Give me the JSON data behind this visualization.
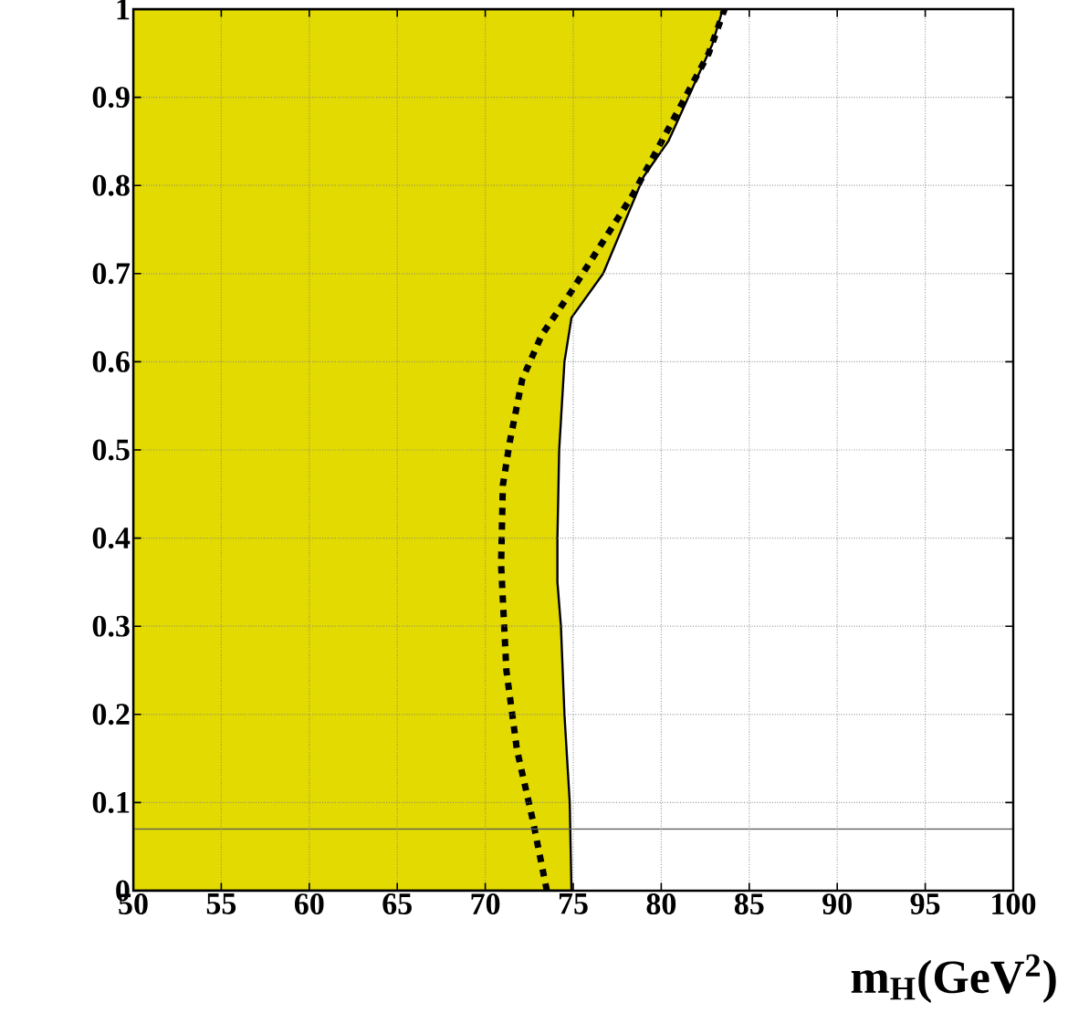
{
  "chart_data": {
    "type": "line",
    "xlabel": "m$_{H}$(GeV$^{2}$)",
    "xlim": [
      50,
      100
    ],
    "ylim": [
      0,
      1
    ],
    "xticks": [
      50,
      55,
      60,
      65,
      70,
      75,
      80,
      85,
      90,
      95,
      100
    ],
    "yticks": [
      0,
      0.1,
      0.2,
      0.3,
      0.4,
      0.5,
      0.6,
      0.7,
      0.8,
      0.9,
      1
    ],
    "grid": true,
    "series": [
      {
        "type": "area",
        "color": "#e2da00",
        "line_style": "solid",
        "x": [
          50,
          83.5,
          82.9,
          80.4,
          79.0,
          76.7,
          74.9,
          74.5,
          74.2,
          74.1,
          74.1,
          74.3,
          74.5,
          74.8,
          74.9
        ],
        "values": [
          1,
          1,
          0.96,
          0.85,
          0.81,
          0.7,
          0.65,
          0.6,
          0.5,
          0.4,
          0.35,
          0.3,
          0.2,
          0.1,
          0
        ]
      },
      {
        "color": "#000000",
        "line_style": "dashed",
        "x": [
          73.5,
          72.7,
          71.8,
          71.2,
          70.9,
          71.0,
          71.4,
          72.1,
          73.2,
          74.9,
          78.4,
          81.1,
          82.7,
          83.6
        ],
        "values": [
          0,
          0.08,
          0.16,
          0.25,
          0.37,
          0.46,
          0.51,
          0.58,
          0.63,
          0.68,
          0.79,
          0.89,
          0.95,
          1
        ]
      }
    ],
    "ref_lines": [
      {
        "axis": "y",
        "value": 0.07,
        "color": "#606060"
      }
    ]
  }
}
